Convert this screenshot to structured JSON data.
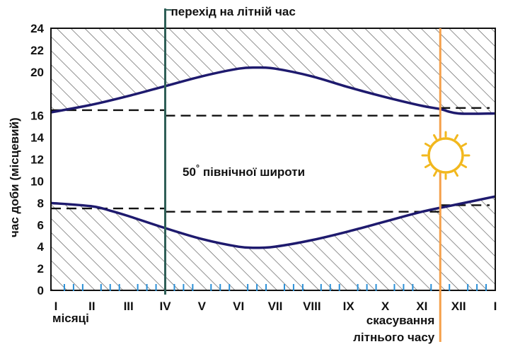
{
  "chart_data": {
    "type": "line",
    "ylabel": "час доби (місцевий)",
    "xlabel": "місяці",
    "ylim": [
      0,
      24
    ],
    "yticks": [
      0,
      2,
      4,
      6,
      8,
      10,
      12,
      14,
      16,
      20,
      22,
      24
    ],
    "categories": [
      "I",
      "II",
      "III",
      "IV",
      "V",
      "VI",
      "VII",
      "VIII",
      "IX",
      "X",
      "XI",
      "XII",
      "I"
    ],
    "series": [
      {
        "key": "sunset",
        "x": [
          0,
          1,
          2,
          3,
          4,
          5,
          5.5,
          6,
          7,
          8,
          9,
          10,
          10.5,
          11,
          12
        ],
        "values": [
          16.3,
          17.0,
          17.8,
          18.7,
          19.6,
          20.3,
          20.4,
          20.3,
          19.6,
          18.6,
          17.7,
          16.9,
          16.6,
          16.2,
          16.2
        ]
      },
      {
        "key": "sunrise",
        "x": [
          0,
          1,
          1.5,
          2,
          3,
          4,
          5,
          5.5,
          6,
          7,
          8,
          9,
          10,
          11,
          12
        ],
        "values": [
          8.0,
          7.7,
          7.3,
          6.8,
          5.7,
          4.7,
          4.0,
          3.9,
          4.0,
          4.6,
          5.4,
          6.3,
          7.2,
          7.9,
          8.6
        ]
      }
    ],
    "reference_lines": [
      {
        "key": "sunset_winter_left",
        "x": [
          0,
          3
        ],
        "y": 16.5
      },
      {
        "key": "sunset_summer",
        "x": [
          3,
          10.5
        ],
        "y": 16.0
      },
      {
        "key": "sunset_winter_right",
        "x": [
          10.5,
          12
        ],
        "y": 16.7
      },
      {
        "key": "sunrise_winter_left",
        "x": [
          0,
          3
        ],
        "y": 7.5
      },
      {
        "key": "sunrise_summer",
        "x": [
          3,
          10.5
        ],
        "y": 7.2
      },
      {
        "key": "sunrise_winter_right",
        "x": [
          10.5,
          12
        ],
        "y": 7.8
      }
    ],
    "markers": [
      {
        "key": "dst_start",
        "x": 3.0,
        "label": "перехід на літній час",
        "color": "#2f5f57"
      },
      {
        "key": "dst_end",
        "x": 10.5,
        "label": "скасування літнього часу",
        "color": "#f5a04a"
      }
    ],
    "annotation": {
      "text": "50",
      "degree": "°",
      "rest": " північної широти"
    },
    "colors": {
      "curve": "#1e1a6e",
      "ticks": "#2a8fd6",
      "hatch": "#444444",
      "frame": "#111111",
      "sun": "#f2b81e"
    }
  }
}
